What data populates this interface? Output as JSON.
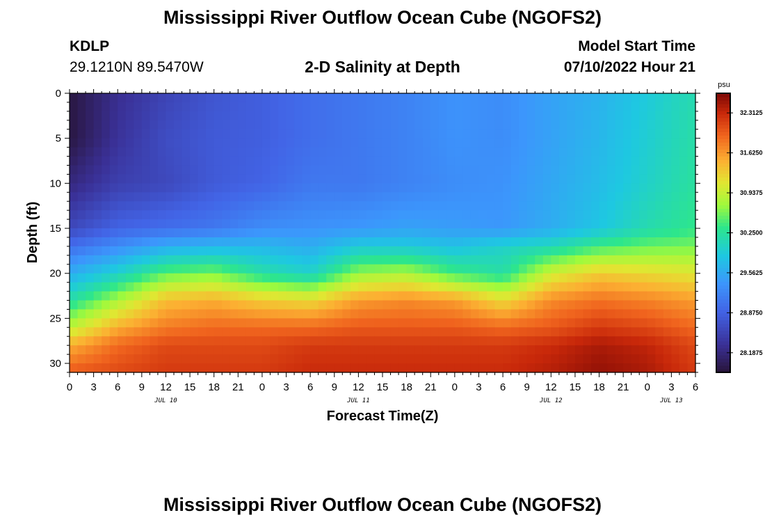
{
  "header": {
    "title": "Mississippi River Outflow Ocean Cube (NGOFS2)",
    "station_id": "KDLP",
    "station_coords": "29.1210N  89.5470W",
    "subtitle": "2-D Salinity at Depth",
    "model_start_label": "Model Start Time",
    "model_start_value": "07/10/2022 Hour 21"
  },
  "footer": {
    "title_repeat": "Mississippi River Outflow Ocean Cube (NGOFS2)"
  },
  "chart_data": {
    "type": "heatmap",
    "title": "2-D Salinity at Depth",
    "xlabel": "Forecast Time(Z)",
    "ylabel": "Depth (ft)",
    "y_ticks": [
      0,
      5,
      10,
      15,
      20,
      25,
      30
    ],
    "ylim": [
      0,
      31
    ],
    "y_inverted": true,
    "x_range_hours": [
      0,
      78
    ],
    "x_tick_labels": [
      "0",
      "3",
      "6",
      "9",
      "12",
      "15",
      "18",
      "21",
      "0",
      "3",
      "6",
      "9",
      "12",
      "15",
      "18",
      "21",
      "0",
      "3",
      "6",
      "9",
      "12",
      "15",
      "18",
      "21",
      "0",
      "3",
      "6"
    ],
    "day_labels": [
      {
        "label": "JUL 10",
        "hour": 12
      },
      {
        "label": "JUL 11",
        "hour": 36
      },
      {
        "label": "JUL 12",
        "hour": 60
      },
      {
        "label": "JUL 13",
        "hour": 75
      }
    ],
    "colorbar": {
      "unit": "psu",
      "min": 27.85,
      "max": 32.65,
      "tick_labels": [
        "32.3125",
        "31.6250",
        "30.9375",
        "30.2500",
        "29.5625",
        "28.8750",
        "28.1875"
      ],
      "tick_values": [
        32.3125,
        31.625,
        30.9375,
        30.25,
        29.5625,
        28.875,
        28.1875
      ]
    },
    "series": [
      {
        "x": 0,
        "depth": [
          0,
          5,
          10,
          15,
          17,
          20,
          23,
          26,
          28,
          31
        ],
        "salinity": [
          27.9,
          27.9,
          28.2,
          28.6,
          29.0,
          29.6,
          30.2,
          30.9,
          31.5,
          32.0
        ]
      },
      {
        "x": 6,
        "depth": [
          0,
          5,
          10,
          15,
          17,
          20,
          23,
          26,
          28,
          31
        ],
        "salinity": [
          28.3,
          28.35,
          28.5,
          28.9,
          29.3,
          30.0,
          30.8,
          31.5,
          31.9,
          32.1
        ]
      },
      {
        "x": 12,
        "depth": [
          0,
          5,
          10,
          15,
          17,
          20,
          23,
          26,
          28,
          31
        ],
        "salinity": [
          28.55,
          28.65,
          28.6,
          29.0,
          29.6,
          30.5,
          31.4,
          31.8,
          32.1,
          32.2
        ]
      },
      {
        "x": 18,
        "depth": [
          0,
          5,
          10,
          15,
          17,
          20,
          23,
          26,
          28,
          31
        ],
        "salinity": [
          28.75,
          28.8,
          28.8,
          29.1,
          29.7,
          30.6,
          31.5,
          31.9,
          32.1,
          32.2
        ]
      },
      {
        "x": 24,
        "depth": [
          0,
          5,
          10,
          15,
          17,
          20,
          23,
          26,
          28,
          31
        ],
        "salinity": [
          28.85,
          28.85,
          28.9,
          29.3,
          29.7,
          30.2,
          31.3,
          31.9,
          32.1,
          32.2
        ]
      },
      {
        "x": 30,
        "depth": [
          0,
          5,
          10,
          15,
          17,
          20,
          23,
          26,
          28,
          31
        ],
        "salinity": [
          29.0,
          29.0,
          29.1,
          29.35,
          29.6,
          30.0,
          31.2,
          31.9,
          32.2,
          32.3
        ]
      },
      {
        "x": 36,
        "depth": [
          0,
          5,
          10,
          15,
          17,
          20,
          23,
          26,
          28,
          31
        ],
        "salinity": [
          29.1,
          29.1,
          29.1,
          29.4,
          29.9,
          30.7,
          31.6,
          32.0,
          32.2,
          32.3
        ]
      },
      {
        "x": 42,
        "depth": [
          0,
          5,
          10,
          15,
          17,
          20,
          23,
          26,
          28,
          31
        ],
        "salinity": [
          29.2,
          29.2,
          29.2,
          29.5,
          29.9,
          30.8,
          31.7,
          32.0,
          32.2,
          32.3
        ]
      },
      {
        "x": 48,
        "depth": [
          0,
          5,
          10,
          15,
          17,
          20,
          23,
          26,
          28,
          31
        ],
        "salinity": [
          29.35,
          29.35,
          29.3,
          29.45,
          29.8,
          30.4,
          31.6,
          32.0,
          32.2,
          32.3
        ]
      },
      {
        "x": 54,
        "depth": [
          0,
          5,
          10,
          15,
          17,
          20,
          23,
          26,
          28,
          31
        ],
        "salinity": [
          29.3,
          29.3,
          29.35,
          29.4,
          30.0,
          30.2,
          31.2,
          31.9,
          32.2,
          32.3
        ]
      },
      {
        "x": 60,
        "depth": [
          0,
          5,
          10,
          15,
          17,
          20,
          23,
          26,
          28,
          31
        ],
        "salinity": [
          29.5,
          29.5,
          29.55,
          29.6,
          30.1,
          31.0,
          31.7,
          32.0,
          32.3,
          32.4
        ]
      },
      {
        "x": 66,
        "depth": [
          0,
          5,
          10,
          15,
          17,
          20,
          23,
          26,
          28,
          31
        ],
        "salinity": [
          29.65,
          29.7,
          29.75,
          29.85,
          30.4,
          31.3,
          31.85,
          32.2,
          32.45,
          32.55
        ]
      },
      {
        "x": 72,
        "depth": [
          0,
          5,
          10,
          15,
          17,
          20,
          23,
          26,
          28,
          31
        ],
        "salinity": [
          29.9,
          29.95,
          30.0,
          30.15,
          30.55,
          31.2,
          31.75,
          32.1,
          32.35,
          32.45
        ]
      },
      {
        "x": 78,
        "depth": [
          0,
          5,
          10,
          15,
          17,
          20,
          23,
          26,
          28,
          31
        ],
        "salinity": [
          30.15,
          30.2,
          30.25,
          30.35,
          30.6,
          31.1,
          31.6,
          31.9,
          32.1,
          32.2
        ]
      }
    ]
  }
}
